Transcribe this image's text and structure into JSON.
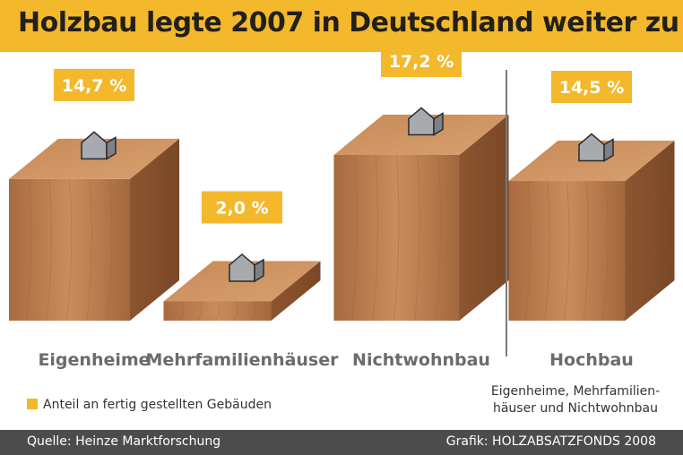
{
  "title": "Holzbau legte 2007 in Deutschland weiter zu",
  "chart_data": {
    "type": "bar",
    "categories": [
      "Eigenheime",
      "Mehrfamilienhäuser",
      "Nichtwohnbau",
      "Hochbau"
    ],
    "values": [
      14.7,
      2.0,
      17.2,
      14.5
    ],
    "value_labels": [
      "14,7 %",
      "2,0 %",
      "17,2 %",
      "14,5 %"
    ],
    "unit": "%",
    "legend": "Anteil an fertig gestellten Gebäuden",
    "legend_placement": "bottom-left",
    "grid": false
  },
  "note": "Eigenheime, Mehrfamilien-häuser und Nichtwohnbau",
  "footer": {
    "source": "Quelle: Heinze Marktforschung",
    "credit": "Grafik: HOLZABSATZFONDS 2008"
  },
  "colors": {
    "accent": "#f3b82c",
    "wood": "#b87a4e",
    "house": "#a7abb0",
    "category_text": "#6b6b6b",
    "footer": "#4c4c4c"
  }
}
